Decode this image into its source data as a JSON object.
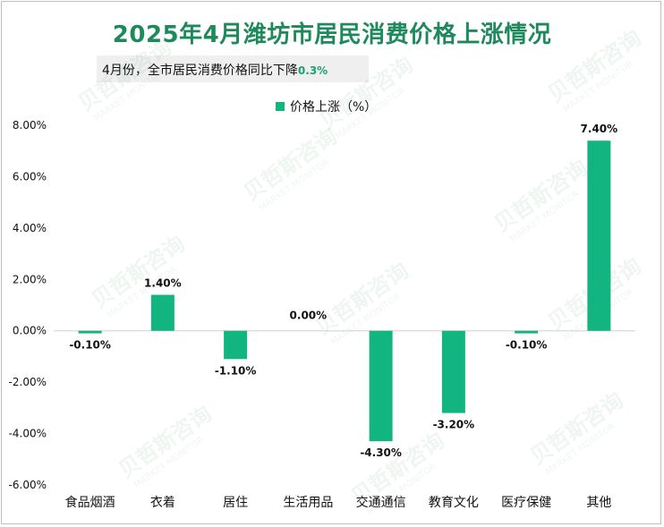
{
  "chart_data": {
    "type": "bar",
    "title": "2025年4月潍坊市居民消费价格上涨情况",
    "annotation_prefix": "4月份，全市居民消费价格同比下降",
    "annotation_value": "0.3%",
    "legend": "价格上涨（%）",
    "categories": [
      "食品烟酒",
      "衣着",
      "居住",
      "生活用品",
      "交通通信",
      "教育文化",
      "医疗保健",
      "其他"
    ],
    "values": [
      -0.1,
      1.4,
      -1.1,
      0.0,
      -4.3,
      -3.2,
      -0.1,
      7.4
    ],
    "data_labels": [
      "-0.10%",
      "1.40%",
      "-1.10%",
      "0.00%",
      "-4.30%",
      "-3.20%",
      "-0.10%",
      "7.40%"
    ],
    "ylim": [
      -6,
      8
    ],
    "yticks": [
      8,
      6,
      4,
      2,
      0,
      -2,
      -4,
      -6
    ],
    "ytick_labels": [
      "8.00%",
      "6.00%",
      "4.00%",
      "2.00%",
      "0.00%",
      "-2.00%",
      "-4.00%",
      "-6.00%"
    ],
    "bar_color": "#12b57f",
    "grid": false,
    "legend_position": "top-center"
  },
  "watermark": {
    "brand": "贝哲斯咨询",
    "tagline": "MARKET MONITOR"
  }
}
